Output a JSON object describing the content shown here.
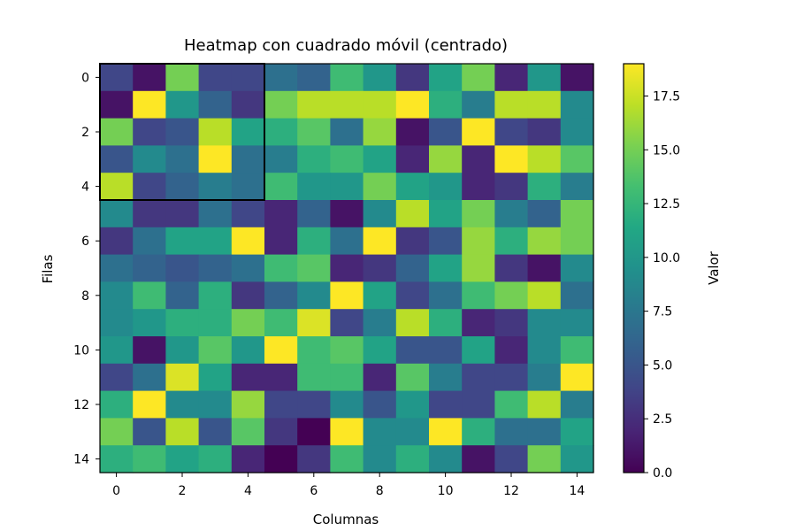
{
  "chart_data": {
    "type": "heatmap",
    "title": "Heatmap con cuadrado móvil (centrado)",
    "xlabel": "Columnas",
    "ylabel": "Filas",
    "colorbar_label": "Valor",
    "colormap": "viridis",
    "vmin": 0,
    "vmax": 19,
    "rows": 15,
    "cols": 15,
    "x_ticks": [
      0,
      2,
      4,
      6,
      8,
      10,
      12,
      14
    ],
    "y_ticks": [
      0,
      2,
      4,
      6,
      8,
      10,
      12,
      14
    ],
    "colorbar_ticks": [
      "0.0",
      "2.5",
      "5.0",
      "7.5",
      "10.0",
      "12.5",
      "15.0",
      "17.5"
    ],
    "colorbar_tick_values": [
      0,
      2.5,
      5,
      7.5,
      10,
      12.5,
      15,
      17.5
    ],
    "highlight_box": {
      "row_start": 0,
      "row_end": 4,
      "col_start": 0,
      "col_end": 4,
      "color": "#000000"
    },
    "values": [
      [
        4,
        1,
        15,
        4,
        4,
        7,
        6,
        13,
        10,
        3,
        11,
        15,
        2,
        10,
        1
      ],
      [
        1,
        19,
        10,
        6,
        3,
        15,
        17,
        17,
        17,
        19,
        12,
        8,
        17,
        17,
        9
      ],
      [
        15,
        4,
        5,
        17,
        11,
        12,
        14,
        7,
        16,
        1,
        5,
        19,
        4,
        3,
        9
      ],
      [
        5,
        9,
        7,
        19,
        7,
        8,
        12,
        13,
        11,
        2,
        16,
        2,
        19,
        17,
        14
      ],
      [
        17,
        4,
        6,
        8,
        7,
        13,
        10,
        10,
        15,
        11,
        10,
        2,
        3,
        12,
        8
      ],
      [
        9,
        3,
        3,
        7,
        4,
        2,
        6,
        1,
        9,
        17,
        11,
        15,
        8,
        6,
        15
      ],
      [
        3,
        7,
        11,
        11,
        19,
        2,
        12,
        7,
        19,
        3,
        5,
        16,
        12,
        16,
        15
      ],
      [
        7,
        6,
        5,
        6,
        7,
        13,
        14,
        2,
        3,
        6,
        11,
        16,
        3,
        1,
        9
      ],
      [
        9,
        13,
        6,
        12,
        3,
        6,
        9,
        19,
        11,
        4,
        7,
        13,
        15,
        17,
        7
      ],
      [
        9,
        10,
        12,
        12,
        15,
        13,
        18,
        4,
        8,
        17,
        12,
        2,
        3,
        9,
        9
      ],
      [
        10,
        1,
        10,
        14,
        10,
        19,
        13,
        14,
        11,
        5,
        5,
        11,
        2,
        9,
        13
      ],
      [
        4,
        7,
        18,
        11,
        2,
        2,
        13,
        13,
        2,
        14,
        8,
        4,
        4,
        8,
        19
      ],
      [
        12,
        19,
        9,
        9,
        16,
        4,
        4,
        9,
        5,
        10,
        4,
        4,
        13,
        17,
        8
      ],
      [
        15,
        5,
        17,
        5,
        14,
        3,
        0,
        19,
        9,
        9,
        19,
        12,
        7,
        7,
        11
      ],
      [
        12,
        13,
        11,
        12,
        2,
        0,
        3,
        13,
        9,
        12,
        9,
        1,
        4,
        15,
        10
      ]
    ]
  }
}
